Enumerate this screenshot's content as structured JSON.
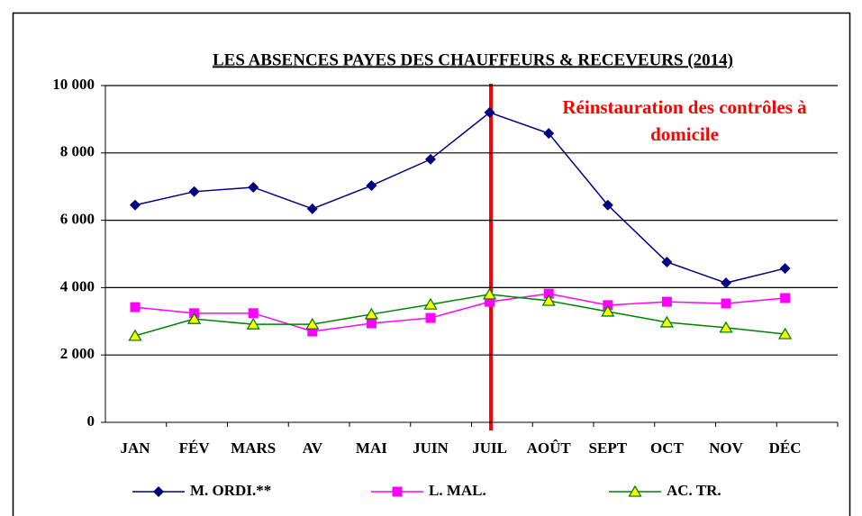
{
  "chart_data": {
    "type": "line",
    "title": "LES ABSENCES PAYES DES CHAUFFEURS & RECEVEURS (2014)",
    "annotation": [
      "Réinstauration des contrôles à",
      "domicile"
    ],
    "categories": [
      "JAN",
      "FÉV",
      "MARS",
      "AV",
      "MAI",
      "JUIN",
      "JUIL",
      "AOÛT",
      "SEPT",
      "OCT",
      "NOV",
      "DÉC"
    ],
    "series": [
      {
        "name": "M. ORDI.**",
        "color": "#000080",
        "marker": "diamond",
        "values": [
          6450,
          6850,
          6980,
          6340,
          7030,
          7810,
          9200,
          8580,
          6450,
          4760,
          4140,
          4570
        ]
      },
      {
        "name": "L. MAL.",
        "color": "#ff00ff",
        "marker": "square",
        "values": [
          3420,
          3240,
          3240,
          2700,
          2940,
          3100,
          3580,
          3820,
          3480,
          3580,
          3530,
          3690
        ]
      },
      {
        "name": "AC. TR.",
        "color": "#008000",
        "marker": "triangle",
        "values": [
          2570,
          3070,
          2910,
          2910,
          3210,
          3500,
          3800,
          3610,
          3290,
          2970,
          2810,
          2620
        ]
      }
    ],
    "ylim": [
      0,
      10000
    ],
    "yticks": [
      0,
      {
        "value": 2000,
        "label": "2 000"
      },
      {
        "value": 4000,
        "label": "4 000"
      },
      {
        "value": 6000,
        "label": "6 000"
      },
      {
        "value": 8000,
        "label": "8 000"
      },
      {
        "value": 10000,
        "label": "10 000"
      }
    ],
    "grid": true,
    "legend": "bottom"
  }
}
